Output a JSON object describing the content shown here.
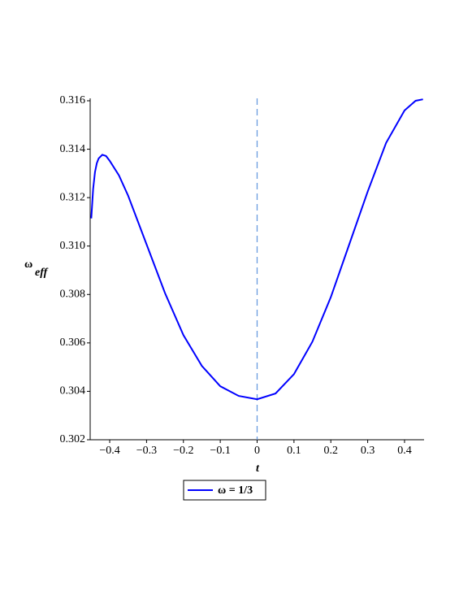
{
  "chart_data": {
    "type": "line",
    "xlabel": "t",
    "ylabel": "ω",
    "ylabel_sub": "eff",
    "x": [
      -0.45,
      -0.445,
      -0.44,
      -0.435,
      -0.43,
      -0.42,
      -0.41,
      -0.4,
      -0.375,
      -0.35,
      -0.3,
      -0.25,
      -0.2,
      -0.15,
      -0.1,
      -0.05,
      0,
      0.05,
      0.1,
      0.15,
      0.2,
      0.25,
      0.3,
      0.35,
      0.4,
      0.43,
      0.45
    ],
    "series": [
      {
        "name": "ω = 1/3",
        "color": "#0000ff",
        "values": [
          0.31114,
          0.31235,
          0.31305,
          0.31342,
          0.31362,
          0.31377,
          0.31372,
          0.31352,
          0.31292,
          0.31208,
          0.31007,
          0.30806,
          0.30632,
          0.30505,
          0.30421,
          0.30381,
          0.30367,
          0.30391,
          0.30471,
          0.30605,
          0.30789,
          0.31007,
          0.31225,
          0.31426,
          0.3156,
          0.316,
          0.31606
        ]
      }
    ],
    "vline": 0,
    "vline_color": "#6a9be0",
    "xlim": [
      -0.453,
      0.453
    ],
    "ylim": [
      0.302,
      0.3161
    ],
    "xticks": [
      {
        "value": -0.4,
        "label": "−0.4"
      },
      {
        "value": -0.3,
        "label": "−0.3"
      },
      {
        "value": -0.2,
        "label": "−0.2"
      },
      {
        "value": -0.1,
        "label": "−0.1"
      },
      0,
      0.1,
      0.2,
      0.3,
      0.4
    ],
    "yticks": [
      0.302,
      0.304,
      0.306,
      0.308,
      {
        "value": 0.31,
        "label": "0.310"
      },
      0.312,
      0.314,
      0.316
    ]
  }
}
